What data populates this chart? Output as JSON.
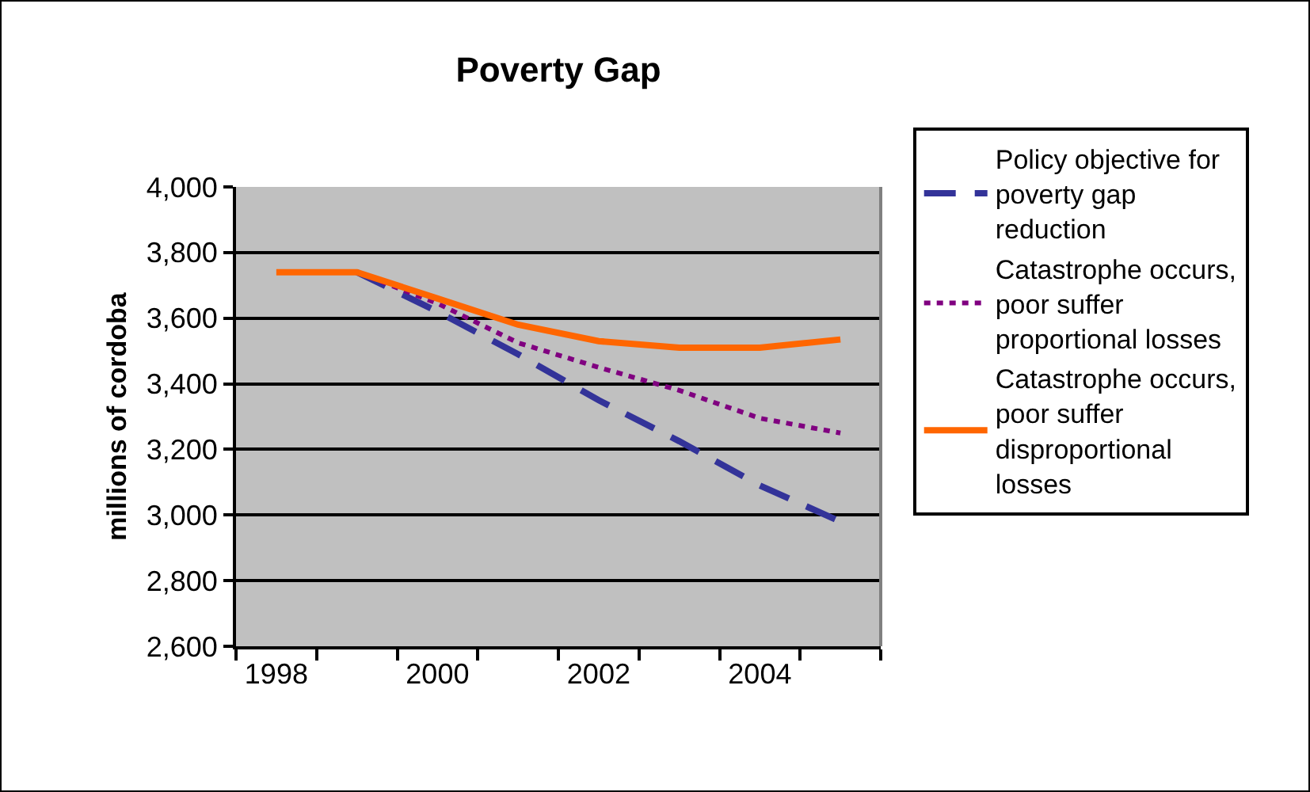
{
  "chart_data": {
    "type": "line",
    "title": "Poverty Gap",
    "ylabel": "millions of cordoba",
    "categories": [
      "1998",
      null,
      "2000",
      null,
      "2002",
      null,
      "2004",
      null
    ],
    "series": [
      {
        "name": "Policy objective for poverty gap reduction",
        "color": "#333399",
        "line_style": "dashed",
        "values": [
          null,
          3740,
          3620,
          3490,
          3350,
          3225,
          3090,
          2980
        ]
      },
      {
        "name": "Catastrophe occurs, poor suffer proportional losses",
        "color": "#800080",
        "line_style": "dotted",
        "values": [
          null,
          3740,
          3645,
          3525,
          3450,
          3380,
          3295,
          3250
        ]
      },
      {
        "name": "Catastrophe occurs, poor suffer disproportional losses",
        "color": "#ff6600",
        "line_style": "solid",
        "values": [
          3740,
          3740,
          3660,
          3580,
          3530,
          3510,
          3510,
          3535
        ]
      }
    ],
    "ylim": [
      2600,
      4000
    ],
    "yticks": [
      {
        "value": 2600,
        "label": "2,600"
      },
      {
        "value": 2800,
        "label": "2,800"
      },
      {
        "value": 3000,
        "label": "3,000"
      },
      {
        "value": 3200,
        "label": "3,200"
      },
      {
        "value": 3400,
        "label": "3,400"
      },
      {
        "value": 3600,
        "label": "3,600"
      },
      {
        "value": 3800,
        "label": "3,800"
      },
      {
        "value": 4000,
        "label": "4,000"
      }
    ],
    "grid": "y",
    "legend": "right",
    "marker": "none"
  }
}
